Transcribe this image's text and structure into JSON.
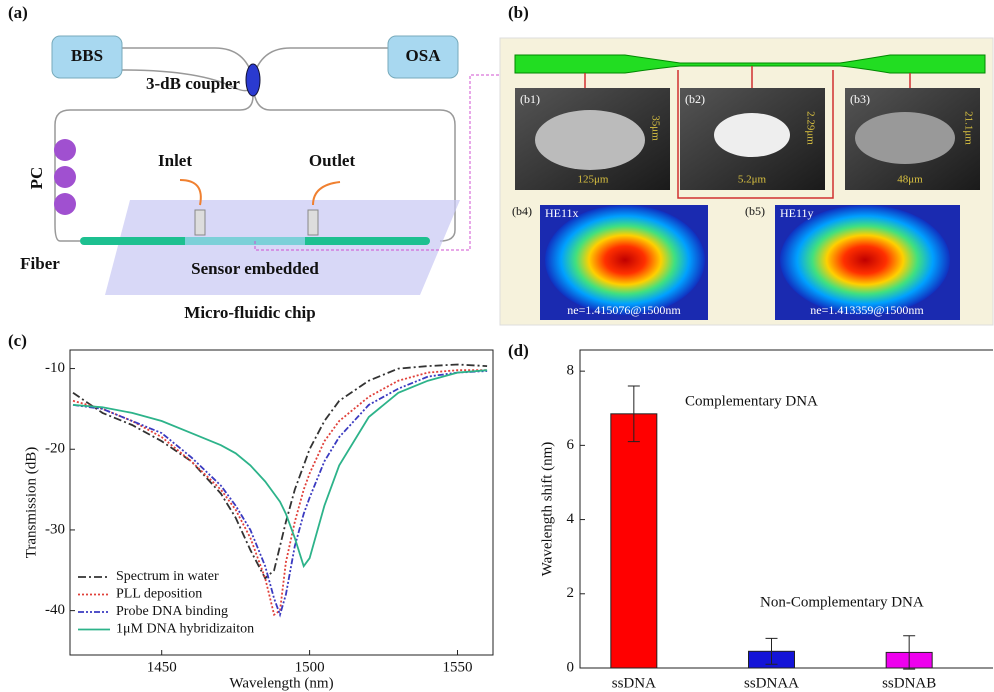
{
  "panel_labels": [
    "(a)",
    "(b)",
    "(c)",
    "(d)"
  ],
  "diagram_a": {
    "boxes": [
      "BBS",
      "OSA"
    ],
    "coupler": "3-dB coupler",
    "pc": "PC",
    "inlet": "Inlet",
    "outlet": "Outlet",
    "fiber": "Fiber",
    "sensor": "Sensor embedded",
    "chip": "Micro-fluidic chip"
  },
  "diagram_b": {
    "sem_labels": [
      "(b1)",
      "(b2)",
      "(b3)"
    ],
    "sem_dims": [
      [
        "35μm",
        "125μm"
      ],
      [
        "2.29μm",
        "5.2μm"
      ],
      [
        "21.1μm",
        "48μm"
      ]
    ],
    "mode_labels": [
      "(b4)",
      "(b5)"
    ],
    "modes": [
      "HE11x",
      "HE11y"
    ],
    "indices": [
      "ne=1.415076@1500nm",
      "ne=1.413359@1500nm"
    ]
  },
  "chart_data": [
    {
      "type": "line",
      "x_label": "Wavelength (nm)",
      "y_label": "Transmission (dB)",
      "x": [
        1420,
        1430,
        1440,
        1450,
        1460,
        1470,
        1475,
        1480,
        1485,
        1488,
        1490,
        1492,
        1495,
        1498,
        1500,
        1505,
        1510,
        1520,
        1530,
        1540,
        1550,
        1560
      ],
      "series": [
        {
          "name": "Spectrum in water",
          "color": "#333333",
          "dash": "dash-dot",
          "values": [
            -13,
            -15.5,
            -17,
            -19,
            -21.5,
            -25.5,
            -28.5,
            -32.5,
            -36,
            -35,
            -32,
            -29,
            -25,
            -22,
            -20,
            -16.5,
            -14,
            -11.5,
            -10,
            -9.7,
            -9.5,
            -9.7
          ]
        },
        {
          "name": "PLL deposition",
          "color": "#e0403a",
          "dash": "dot",
          "values": [
            -14,
            -15,
            -16.5,
            -18.5,
            -21.5,
            -25,
            -27.5,
            -31,
            -36,
            -40.5,
            -40,
            -34,
            -29,
            -25,
            -23,
            -19,
            -16.5,
            -13.5,
            -11.5,
            -10.5,
            -10.2,
            -10.2
          ]
        },
        {
          "name": "Probe DNA binding",
          "color": "#3a3ac0",
          "dash": "dash-dot-dot",
          "values": [
            -14.5,
            -15,
            -16.5,
            -18,
            -21,
            -24.5,
            -27,
            -30,
            -34.5,
            -38.5,
            -40.5,
            -38,
            -32,
            -28,
            -26,
            -21.5,
            -18.5,
            -14.5,
            -12.5,
            -11,
            -10.5,
            -10.3
          ]
        },
        {
          "name": "1μM DNA hybridizaiton",
          "color": "#2db38a",
          "dash": "solid",
          "values": [
            -14.5,
            -14.8,
            -15.5,
            -16.5,
            -18,
            -19.5,
            -20.5,
            -22,
            -24,
            -25.5,
            -26.5,
            -28,
            -31,
            -34.5,
            -33.5,
            -27,
            -22,
            -16,
            -13,
            -11.5,
            -10.5,
            -10.2
          ]
        }
      ],
      "xlim": [
        1419,
        1562
      ],
      "xticks": [
        1450,
        1500,
        1550
      ],
      "ylim": [
        -45.5,
        -7.7
      ],
      "yticks": [
        -10,
        -20,
        -30,
        -40
      ],
      "legend": "lower-left"
    },
    {
      "type": "bar",
      "y_label": "Wavelength shift (nm)",
      "categories": [
        "ssDNA",
        "ssDNAA",
        "ssDNAB"
      ],
      "values": [
        6.85,
        0.45,
        0.42
      ],
      "errors": [
        0.75,
        0.35,
        0.45
      ],
      "colors": [
        "#ff0000",
        "#1414d8",
        "#ee00ee"
      ],
      "annotations": [
        "Complementary DNA",
        "Non-Complementary DNA"
      ],
      "ylim": [
        0,
        8.57
      ],
      "yticks": [
        0,
        2,
        4,
        6,
        8
      ]
    }
  ]
}
